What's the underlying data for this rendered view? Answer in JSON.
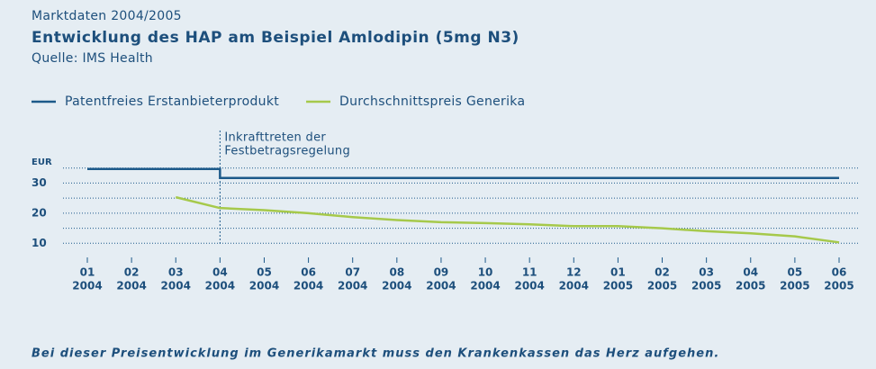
{
  "chart_data": {
    "type": "line",
    "supertitle": "Marktdaten 2004/2005",
    "title": "Entwicklung des HAP am Beispiel Amlodipin (5mg N3)",
    "subtitle": "Quelle: IMS Health",
    "ylabel": "EUR",
    "categories": [
      [
        "01",
        "2004"
      ],
      [
        "02",
        "2004"
      ],
      [
        "03",
        "2004"
      ],
      [
        "04",
        "2004"
      ],
      [
        "05",
        "2004"
      ],
      [
        "06",
        "2004"
      ],
      [
        "07",
        "2004"
      ],
      [
        "08",
        "2004"
      ],
      [
        "09",
        "2004"
      ],
      [
        "10",
        "2004"
      ],
      [
        "11",
        "2004"
      ],
      [
        "12",
        "2004"
      ],
      [
        "01",
        "2005"
      ],
      [
        "02",
        "2005"
      ],
      [
        "03",
        "2005"
      ],
      [
        "04",
        "2005"
      ],
      [
        "05",
        "2005"
      ],
      [
        "06",
        "2005"
      ]
    ],
    "series": [
      {
        "name": "Patentfreies Erstanbieterprodukt",
        "color": "#1d5a8a",
        "step": true,
        "values": [
          34.7,
          34.7,
          34.7,
          31.7,
          31.7,
          31.7,
          31.7,
          31.7,
          31.7,
          31.7,
          31.7,
          31.7,
          31.7,
          31.7,
          31.7,
          31.7,
          31.7,
          31.7
        ]
      },
      {
        "name": "Durchschnittspreis Generika",
        "color": "#a6c94b",
        "step": false,
        "values": [
          null,
          null,
          25.3,
          21.7,
          21,
          20,
          18.7,
          17.7,
          17,
          16.7,
          16.3,
          15.7,
          15.7,
          15,
          14,
          13.3,
          12.3,
          10.3
        ]
      }
    ],
    "ylim": [
      8,
      37
    ],
    "yticks": [
      10,
      20,
      30
    ],
    "grid": true,
    "annotation": {
      "category_index": 3,
      "lines": [
        "Inkrafttreten der",
        "Festbetragsregelung"
      ]
    },
    "footer": "Bei dieser Preisentwicklung im Generikamarkt muss den Krankenkassen das Herz aufgehen."
  }
}
